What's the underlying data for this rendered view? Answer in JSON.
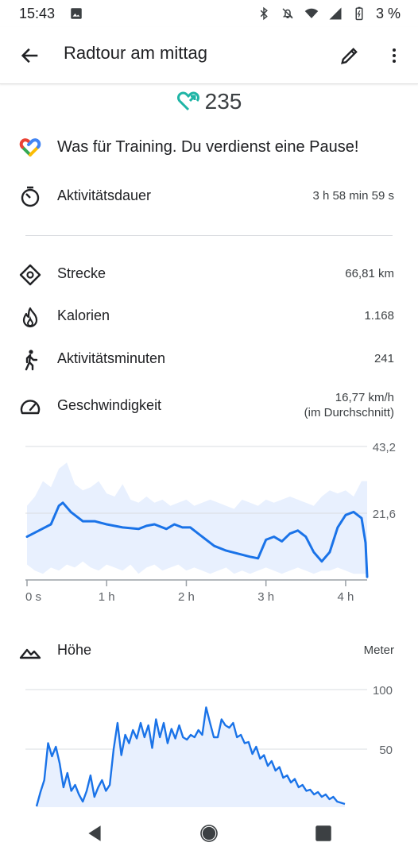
{
  "status_bar": {
    "time": "15:43",
    "battery_percent": "3 %",
    "icons": [
      "image-icon",
      "bluetooth-icon",
      "notifications-off-icon",
      "wifi-icon",
      "signal-icon",
      "battery-charging-icon"
    ]
  },
  "app_bar": {
    "title": "Radtour am mittag"
  },
  "heart_points": {
    "value": "235",
    "icon": "heart-points-icon",
    "color": "#1fb5a6"
  },
  "message": {
    "text": "Was für Training. Du verdienst eine Pause!",
    "icon": "google-fit-icon"
  },
  "duration": {
    "label": "Aktivitätsdauer",
    "value": "3 h 58 min 59 s",
    "icon": "timer-icon"
  },
  "stats": [
    {
      "label": "Strecke",
      "value": "66,81 km",
      "icon": "distance-icon"
    },
    {
      "label": "Kalorien",
      "value": "1.168",
      "icon": "calories-icon"
    },
    {
      "label": "Aktivitätsminuten",
      "value": "241",
      "icon": "walking-icon"
    },
    {
      "label": "Geschwindigkeit",
      "value": "16,77 km/h",
      "value_note": "(im Durchschnitt)",
      "icon": "speedometer-icon"
    }
  ],
  "elevation": {
    "label": "Höhe",
    "unit": "Meter",
    "icon": "mountain-icon"
  },
  "colors": {
    "line": "#1a73e8",
    "band": "#e8f0fe",
    "grid": "#dadce0"
  },
  "chart_data": [
    {
      "type": "line",
      "title": "",
      "xlabel": "",
      "ylabel": "",
      "x_ticks": [
        "0 s",
        "1 h",
        "2 h",
        "3 h",
        "4 h"
      ],
      "y_ticks": [
        "43,2",
        "21,6"
      ],
      "y_tick_values": [
        43.2,
        21.6
      ],
      "xlim": [
        0,
        4.27
      ],
      "ylim": [
        0,
        43.2
      ],
      "grid": true,
      "band": {
        "x": [
          0,
          0.1,
          0.2,
          0.3,
          0.4,
          0.5,
          0.6,
          0.7,
          0.8,
          0.9,
          1.0,
          1.1,
          1.2,
          1.3,
          1.4,
          1.5,
          1.6,
          1.7,
          1.8,
          1.9,
          2.0,
          2.1,
          2.2,
          2.3,
          2.4,
          2.5,
          2.6,
          2.7,
          2.8,
          2.9,
          3.0,
          3.1,
          3.2,
          3.3,
          3.4,
          3.5,
          3.6,
          3.7,
          3.8,
          3.9,
          4.0,
          4.1,
          4.2,
          4.27
        ],
        "upper": [
          24,
          27,
          32,
          30,
          36,
          38,
          31,
          29,
          30,
          32,
          28,
          27,
          31,
          26,
          25,
          27,
          25,
          26,
          24,
          25,
          26,
          24,
          25,
          26,
          25,
          24,
          23,
          26,
          25,
          24,
          26,
          25,
          26,
          27,
          26,
          25,
          24,
          27,
          29,
          28,
          29,
          27,
          32,
          32
        ],
        "lower": [
          5,
          3,
          2,
          4,
          3,
          5,
          4,
          6,
          4,
          3,
          5,
          4,
          3,
          5,
          2,
          4,
          5,
          3,
          4,
          5,
          3,
          4,
          3,
          2,
          3,
          4,
          2,
          3,
          2,
          3,
          4,
          3,
          2,
          3,
          4,
          3,
          2,
          3,
          3,
          4,
          3,
          2,
          2,
          2
        ]
      },
      "series": [
        {
          "x": [
            0,
            0.15,
            0.3,
            0.4,
            0.45,
            0.55,
            0.7,
            0.85,
            1.0,
            1.2,
            1.4,
            1.5,
            1.6,
            1.75,
            1.85,
            1.95,
            2.05,
            2.2,
            2.35,
            2.5,
            2.65,
            2.8,
            2.9,
            3.0,
            3.1,
            3.2,
            3.3,
            3.4,
            3.5,
            3.6,
            3.7,
            3.8,
            3.9,
            4.0,
            4.1,
            4.2,
            4.25,
            4.27
          ],
          "y": [
            14,
            16,
            18,
            24,
            25,
            22,
            19,
            19,
            18,
            17,
            16.5,
            17.5,
            18,
            16.5,
            18,
            17,
            17,
            14,
            11,
            9.5,
            8.5,
            7.5,
            7,
            13,
            14,
            12.5,
            15,
            16,
            14,
            9,
            6,
            9,
            17,
            21,
            22,
            20,
            12,
            1
          ]
        }
      ]
    },
    {
      "type": "area",
      "title": "",
      "xlabel": "",
      "ylabel": "Meter",
      "y_ticks": [
        "100",
        "50"
      ],
      "y_tick_values": [
        100,
        50
      ],
      "ylim": [
        0,
        100
      ],
      "grid": true,
      "series": [
        {
          "x": [
            0,
            0.05,
            0.1,
            0.15,
            0.2,
            0.25,
            0.3,
            0.35,
            0.4,
            0.45,
            0.5,
            0.55,
            0.6,
            0.65,
            0.7,
            0.75,
            0.8,
            0.85,
            0.9,
            0.95,
            1.0,
            1.05,
            1.1,
            1.15,
            1.2,
            1.25,
            1.3,
            1.35,
            1.4,
            1.45,
            1.5,
            1.55,
            1.6,
            1.65,
            1.7,
            1.75,
            1.8,
            1.85,
            1.9,
            1.95,
            2.0,
            2.05,
            2.1,
            2.15,
            2.2,
            2.25,
            2.3,
            2.35,
            2.4,
            2.45,
            2.5,
            2.55,
            2.6,
            2.65,
            2.7,
            2.75,
            2.8,
            2.85,
            2.9,
            2.95,
            3.0,
            3.05,
            3.1,
            3.15,
            3.2,
            3.25,
            3.3,
            3.35,
            3.4,
            3.45,
            3.5,
            3.55,
            3.6,
            3.65,
            3.7,
            3.75,
            3.8,
            3.85,
            3.9,
            3.95,
            4.0
          ],
          "y": [
            2,
            14,
            24,
            55,
            44,
            52,
            38,
            18,
            30,
            15,
            20,
            12,
            6,
            15,
            28,
            10,
            18,
            24,
            15,
            20,
            50,
            72,
            45,
            62,
            55,
            66,
            59,
            72,
            60,
            70,
            51,
            75,
            60,
            72,
            55,
            67,
            59,
            70,
            60,
            58,
            62,
            60,
            66,
            62,
            85,
            72,
            60,
            60,
            75,
            70,
            68,
            72,
            60,
            62,
            55,
            56,
            46,
            52,
            42,
            45,
            36,
            40,
            32,
            35,
            26,
            28,
            22,
            25,
            18,
            20,
            15,
            16,
            12,
            14,
            10,
            12,
            8,
            10,
            6,
            5,
            4
          ]
        }
      ]
    }
  ]
}
